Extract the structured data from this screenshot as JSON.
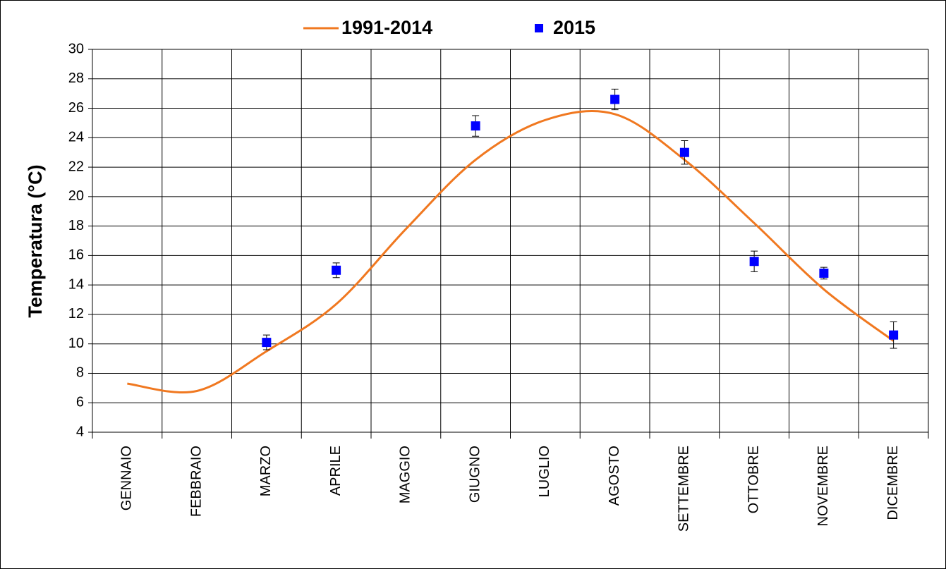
{
  "chart_data": {
    "type": "line",
    "y_label": "Temperatura (°C)",
    "categories": [
      "GENNAIO",
      "FEBBRAIO",
      "MARZO",
      "APRILE",
      "MAGGIO",
      "GIUGNO",
      "LUGLIO",
      "AGOSTO",
      "SETTEMBRE",
      "OTTOBRE",
      "NOVEMBRE",
      "DICEMBRE"
    ],
    "series": [
      {
        "name": "1991-2014",
        "type": "line",
        "color": "#f07820",
        "values": [
          7.3,
          6.8,
          9.5,
          12.7,
          17.8,
          22.5,
          25.2,
          25.6,
          22.5,
          18.2,
          13.7,
          10.2
        ]
      },
      {
        "name": "2015",
        "type": "scatter",
        "color": "#0000ff",
        "values": [
          null,
          null,
          10.1,
          15.0,
          null,
          24.8,
          null,
          26.6,
          23.0,
          15.6,
          14.8,
          10.6
        ],
        "errors": [
          null,
          null,
          0.5,
          0.5,
          null,
          0.7,
          null,
          0.7,
          0.8,
          0.7,
          0.4,
          0.9
        ]
      }
    ],
    "ylim": [
      4,
      30
    ],
    "yticks": [
      4,
      6,
      8,
      10,
      12,
      14,
      16,
      18,
      20,
      22,
      24,
      26,
      28,
      30
    ],
    "grid": true,
    "legend": "top"
  }
}
